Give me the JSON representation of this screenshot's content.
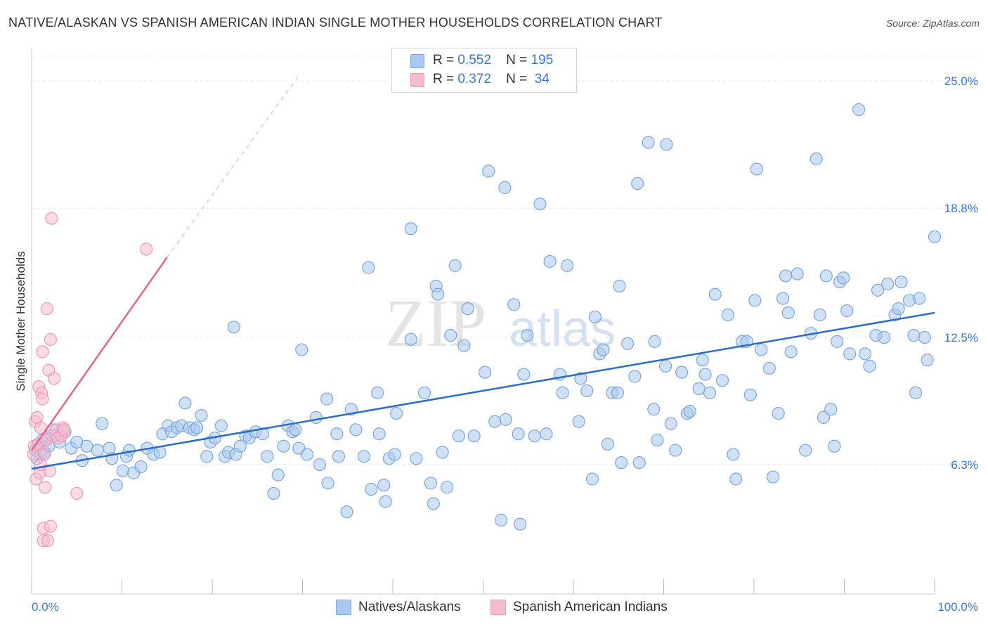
{
  "header": {
    "title": "NATIVE/ALASKAN VS SPANISH AMERICAN INDIAN SINGLE MOTHER HOUSEHOLDS CORRELATION CHART",
    "source": "Source: ZipAtlas.com"
  },
  "watermark": {
    "zip": "ZIP",
    "atlas": "atlas"
  },
  "legend": {
    "series1": {
      "r_label": "R =",
      "r_value": "0.552",
      "n_label": "N =",
      "n_value": "195"
    },
    "series2": {
      "r_label": "R =",
      "r_value": "0.372",
      "n_label": "N =",
      "n_value": " 34"
    }
  },
  "colors": {
    "blue_fill": "#a9c8ef",
    "blue_stroke": "#7aa7de",
    "blue_line": "#2b6cc4",
    "pink_fill": "#f6bcd0",
    "pink_stroke": "#ef98b6",
    "pink_line": "#e0668f",
    "grid": "#e3e3e3",
    "tick_label": "#3b78c9"
  },
  "chart_data": {
    "type": "scatter",
    "title": "NATIVE/ALASKAN VS SPANISH AMERICAN INDIAN SINGLE MOTHER HOUSEHOLDS CORRELATION CHART",
    "xlabel": "",
    "ylabel": "Single Mother Households",
    "xlim": [
      0,
      100
    ],
    "ylim": [
      0,
      26.2
    ],
    "x_tick_labels": [
      "0.0%",
      "100.0%"
    ],
    "y_ticks": [
      6.3,
      12.5,
      18.8,
      25.0
    ],
    "y_tick_labels": [
      "6.3%",
      "12.5%",
      "18.8%",
      "25.0%"
    ],
    "grid": true,
    "legend_position": "top-center",
    "series": [
      {
        "name": "Natives/Alaskans",
        "r": 0.552,
        "n": 195,
        "trend": {
          "x": [
            0,
            100
          ],
          "y": [
            6.1,
            13.7
          ]
        },
        "points": [
          [
            0.4,
            7.0
          ],
          [
            0.6,
            6.6
          ],
          [
            0.8,
            7.3
          ],
          [
            1.0,
            6.8
          ],
          [
            1.2,
            7.5
          ],
          [
            1.4,
            6.9
          ],
          [
            1.7,
            7.6
          ],
          [
            1.9,
            7.2
          ],
          [
            2.3,
            8.0
          ],
          [
            2.6,
            7.7
          ],
          [
            3.1,
            7.4
          ],
          [
            3.7,
            7.9
          ],
          [
            4.4,
            7.1
          ],
          [
            5.0,
            7.4
          ],
          [
            5.6,
            6.5
          ],
          [
            6.1,
            7.2
          ],
          [
            7.3,
            7.0
          ],
          [
            7.8,
            8.3
          ],
          [
            8.6,
            7.1
          ],
          [
            8.9,
            6.6
          ],
          [
            9.4,
            5.3
          ],
          [
            10.1,
            6.0
          ],
          [
            10.5,
            6.7
          ],
          [
            10.8,
            7.0
          ],
          [
            11.3,
            5.9
          ],
          [
            12.1,
            6.2
          ],
          [
            12.8,
            7.1
          ],
          [
            13.5,
            6.8
          ],
          [
            14.2,
            6.9
          ],
          [
            14.5,
            7.8
          ],
          [
            15.1,
            8.2
          ],
          [
            15.5,
            7.9
          ],
          [
            16.1,
            8.1
          ],
          [
            16.6,
            8.2
          ],
          [
            17.0,
            9.3
          ],
          [
            17.5,
            8.1
          ],
          [
            18.0,
            8.0
          ],
          [
            18.3,
            8.1
          ],
          [
            18.8,
            8.7
          ],
          [
            19.4,
            6.7
          ],
          [
            19.8,
            7.4
          ],
          [
            20.3,
            7.6
          ],
          [
            21.0,
            8.2
          ],
          [
            21.4,
            6.7
          ],
          [
            21.8,
            6.9
          ],
          [
            22.4,
            13.0
          ],
          [
            22.6,
            6.8
          ],
          [
            23.1,
            7.2
          ],
          [
            23.7,
            7.7
          ],
          [
            24.1,
            7.6
          ],
          [
            24.8,
            7.9
          ],
          [
            25.6,
            7.8
          ],
          [
            26.1,
            6.7
          ],
          [
            26.8,
            4.9
          ],
          [
            27.3,
            5.8
          ],
          [
            27.9,
            7.2
          ],
          [
            28.4,
            8.2
          ],
          [
            28.9,
            7.9
          ],
          [
            29.2,
            8.0
          ],
          [
            29.6,
            7.1
          ],
          [
            29.9,
            11.9
          ],
          [
            30.5,
            6.8
          ],
          [
            31.5,
            8.6
          ],
          [
            31.9,
            6.3
          ],
          [
            32.7,
            9.5
          ],
          [
            32.8,
            5.4
          ],
          [
            33.8,
            7.8
          ],
          [
            34.0,
            6.7
          ],
          [
            34.9,
            4.0
          ],
          [
            35.4,
            9.0
          ],
          [
            35.9,
            8.0
          ],
          [
            36.8,
            6.7
          ],
          [
            37.3,
            15.9
          ],
          [
            37.6,
            5.1
          ],
          [
            38.3,
            9.8
          ],
          [
            38.5,
            7.8
          ],
          [
            39.0,
            5.3
          ],
          [
            39.2,
            4.5
          ],
          [
            39.6,
            6.6
          ],
          [
            40.2,
            6.8
          ],
          [
            40.4,
            8.8
          ],
          [
            42.0,
            17.8
          ],
          [
            42.0,
            12.4
          ],
          [
            42.6,
            6.6
          ],
          [
            43.5,
            9.8
          ],
          [
            44.2,
            5.4
          ],
          [
            44.5,
            4.4
          ],
          [
            44.8,
            15.0
          ],
          [
            45.0,
            14.6
          ],
          [
            45.5,
            6.9
          ],
          [
            46.0,
            5.2
          ],
          [
            46.4,
            12.6
          ],
          [
            46.9,
            16.0
          ],
          [
            47.3,
            7.7
          ],
          [
            47.9,
            12.1
          ],
          [
            48.3,
            13.9
          ],
          [
            49.0,
            7.7
          ],
          [
            50.2,
            10.8
          ],
          [
            50.6,
            20.6
          ],
          [
            51.3,
            8.4
          ],
          [
            52.0,
            3.6
          ],
          [
            52.5,
            8.5
          ],
          [
            52.4,
            19.8
          ],
          [
            53.4,
            14.1
          ],
          [
            53.9,
            7.8
          ],
          [
            54.1,
            3.4
          ],
          [
            54.5,
            10.7
          ],
          [
            54.9,
            12.6
          ],
          [
            55.7,
            7.7
          ],
          [
            56.3,
            19.0
          ],
          [
            57.0,
            7.8
          ],
          [
            57.4,
            16.2
          ],
          [
            58.5,
            10.7
          ],
          [
            58.8,
            9.8
          ],
          [
            59.3,
            16.0
          ],
          [
            60.6,
            8.4
          ],
          [
            60.8,
            10.5
          ],
          [
            61.5,
            9.9
          ],
          [
            62.1,
            5.6
          ],
          [
            62.4,
            13.5
          ],
          [
            62.9,
            11.7
          ],
          [
            63.3,
            11.9
          ],
          [
            63.8,
            7.3
          ],
          [
            64.3,
            9.8
          ],
          [
            64.9,
            9.8
          ],
          [
            65.1,
            15.0
          ],
          [
            65.3,
            6.4
          ],
          [
            66.0,
            12.2
          ],
          [
            66.8,
            10.6
          ],
          [
            67.1,
            20.0
          ],
          [
            67.3,
            6.4
          ],
          [
            68.3,
            22.0
          ],
          [
            68.9,
            9.0
          ],
          [
            69.0,
            12.3
          ],
          [
            69.3,
            7.5
          ],
          [
            70.2,
            11.1
          ],
          [
            70.3,
            21.9
          ],
          [
            70.8,
            8.3
          ],
          [
            71.3,
            7.0
          ],
          [
            72.0,
            10.8
          ],
          [
            72.6,
            8.8
          ],
          [
            72.9,
            8.9
          ],
          [
            73.9,
            10.0
          ],
          [
            74.3,
            11.4
          ],
          [
            74.6,
            10.7
          ],
          [
            75.1,
            9.8
          ],
          [
            75.7,
            14.6
          ],
          [
            76.5,
            10.4
          ],
          [
            77.1,
            13.6
          ],
          [
            77.7,
            6.8
          ],
          [
            78.0,
            5.6
          ],
          [
            78.7,
            12.3
          ],
          [
            79.2,
            12.3
          ],
          [
            79.6,
            9.7
          ],
          [
            80.1,
            14.3
          ],
          [
            80.3,
            20.7
          ],
          [
            80.8,
            11.9
          ],
          [
            81.7,
            11.0
          ],
          [
            82.1,
            5.7
          ],
          [
            82.7,
            8.8
          ],
          [
            83.2,
            14.4
          ],
          [
            83.5,
            15.5
          ],
          [
            83.8,
            13.7
          ],
          [
            84.1,
            11.8
          ],
          [
            84.8,
            15.6
          ],
          [
            85.7,
            7.0
          ],
          [
            86.3,
            12.7
          ],
          [
            86.9,
            21.2
          ],
          [
            87.3,
            13.6
          ],
          [
            87.7,
            8.6
          ],
          [
            88.0,
            15.5
          ],
          [
            88.5,
            9.0
          ],
          [
            88.9,
            7.2
          ],
          [
            89.2,
            12.3
          ],
          [
            89.5,
            15.2
          ],
          [
            89.9,
            15.4
          ],
          [
            90.3,
            13.8
          ],
          [
            90.6,
            11.7
          ],
          [
            91.6,
            23.6
          ],
          [
            92.3,
            11.7
          ],
          [
            92.8,
            11.1
          ],
          [
            93.5,
            12.6
          ],
          [
            93.7,
            14.8
          ],
          [
            94.4,
            12.5
          ],
          [
            94.8,
            15.1
          ],
          [
            95.6,
            13.6
          ],
          [
            96.0,
            13.9
          ],
          [
            96.3,
            15.2
          ],
          [
            97.2,
            14.3
          ],
          [
            97.7,
            12.6
          ],
          [
            97.9,
            9.8
          ],
          [
            98.3,
            14.4
          ],
          [
            98.9,
            12.5
          ],
          [
            99.2,
            11.4
          ],
          [
            100.0,
            17.4
          ]
        ]
      },
      {
        "name": "Spanish American Indians",
        "r": 0.372,
        "n": 34,
        "trend": {
          "x": [
            0,
            15.0
          ],
          "y": [
            7.0,
            16.4
          ]
        },
        "trend_ext": {
          "x": [
            15.0,
            29.5
          ],
          "y": [
            16.4,
            25.2
          ]
        },
        "points": [
          [
            0.2,
            6.8
          ],
          [
            0.3,
            7.2
          ],
          [
            0.4,
            8.4
          ],
          [
            0.5,
            5.6
          ],
          [
            0.6,
            8.6
          ],
          [
            0.7,
            7.3
          ],
          [
            0.8,
            10.1
          ],
          [
            0.9,
            5.9
          ],
          [
            1.0,
            8.1
          ],
          [
            1.0,
            6.3
          ],
          [
            1.1,
            9.8
          ],
          [
            1.2,
            9.5
          ],
          [
            1.2,
            11.8
          ],
          [
            1.3,
            2.6
          ],
          [
            1.3,
            3.2
          ],
          [
            1.4,
            6.8
          ],
          [
            1.5,
            5.2
          ],
          [
            1.6,
            7.5
          ],
          [
            1.7,
            13.9
          ],
          [
            1.8,
            2.6
          ],
          [
            1.9,
            10.9
          ],
          [
            2.0,
            6.0
          ],
          [
            2.1,
            12.4
          ],
          [
            2.1,
            3.3
          ],
          [
            2.2,
            18.3
          ],
          [
            2.3,
            7.7
          ],
          [
            2.5,
            10.5
          ],
          [
            2.7,
            8.0
          ],
          [
            2.9,
            7.6
          ],
          [
            3.3,
            7.7
          ],
          [
            3.5,
            8.1
          ],
          [
            3.6,
            8.0
          ],
          [
            5.0,
            4.9
          ],
          [
            12.7,
            16.8
          ]
        ]
      }
    ]
  },
  "bottom_legend": {
    "series1_label": "Natives/Alaskans",
    "series2_label": "Spanish American Indians"
  }
}
